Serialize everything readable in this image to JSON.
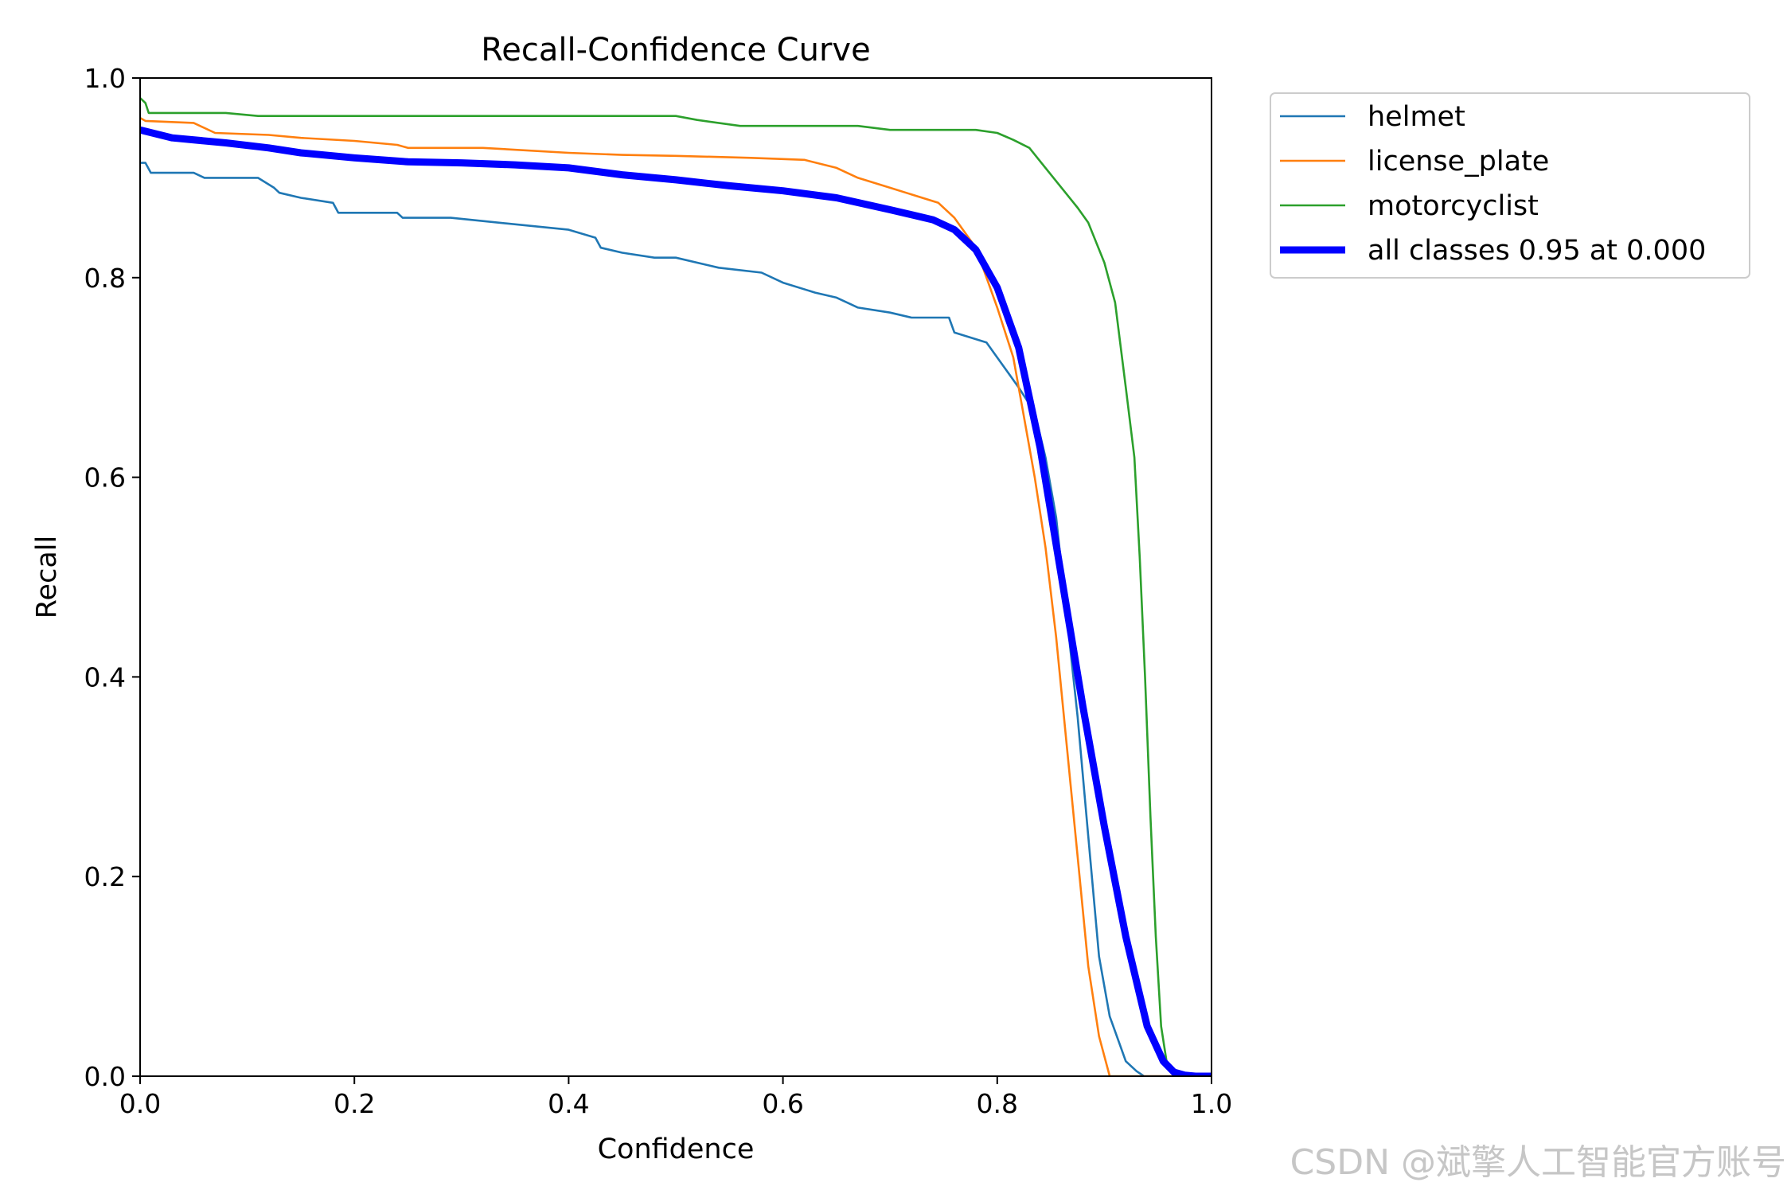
{
  "chart_data": {
    "type": "line",
    "title": "Recall-Confidence Curve",
    "xlabel": "Confidence",
    "ylabel": "Recall",
    "xlim": [
      0,
      1
    ],
    "ylim": [
      0,
      1
    ],
    "xticks": [
      "0.0",
      "0.2",
      "0.4",
      "0.6",
      "0.8",
      "1.0"
    ],
    "yticks": [
      "0.0",
      "0.2",
      "0.4",
      "0.6",
      "0.8",
      "1.0"
    ],
    "grid": false,
    "legend_position": "outside-top-right",
    "series": [
      {
        "name": "helmet",
        "color": "#1f77b4",
        "x": [
          0.0,
          0.005,
          0.01,
          0.05,
          0.06,
          0.11,
          0.125,
          0.13,
          0.15,
          0.18,
          0.185,
          0.24,
          0.245,
          0.29,
          0.4,
          0.425,
          0.43,
          0.45,
          0.48,
          0.5,
          0.54,
          0.58,
          0.6,
          0.63,
          0.65,
          0.67,
          0.7,
          0.72,
          0.755,
          0.76,
          0.79,
          0.8,
          0.82,
          0.835,
          0.845,
          0.855,
          0.865,
          0.875,
          0.885,
          0.895,
          0.905,
          0.915,
          0.92,
          0.93,
          0.937,
          1.0
        ],
        "y": [
          0.915,
          0.915,
          0.905,
          0.905,
          0.9,
          0.9,
          0.89,
          0.885,
          0.88,
          0.875,
          0.865,
          0.865,
          0.86,
          0.86,
          0.848,
          0.84,
          0.83,
          0.825,
          0.82,
          0.82,
          0.81,
          0.805,
          0.795,
          0.785,
          0.78,
          0.77,
          0.765,
          0.76,
          0.76,
          0.745,
          0.735,
          0.72,
          0.69,
          0.665,
          0.62,
          0.56,
          0.46,
          0.36,
          0.24,
          0.12,
          0.06,
          0.03,
          0.015,
          0.005,
          0.0,
          0.0
        ]
      },
      {
        "name": "license_plate",
        "color": "#ff7f0e",
        "x": [
          0.0,
          0.005,
          0.05,
          0.07,
          0.12,
          0.15,
          0.2,
          0.24,
          0.25,
          0.32,
          0.4,
          0.45,
          0.5,
          0.57,
          0.62,
          0.65,
          0.67,
          0.7,
          0.745,
          0.76,
          0.78,
          0.8,
          0.815,
          0.825,
          0.835,
          0.845,
          0.855,
          0.865,
          0.875,
          0.885,
          0.895,
          0.905,
          1.0
        ],
        "y": [
          0.96,
          0.957,
          0.955,
          0.945,
          0.943,
          0.94,
          0.937,
          0.933,
          0.93,
          0.93,
          0.925,
          0.923,
          0.922,
          0.92,
          0.918,
          0.91,
          0.9,
          0.89,
          0.875,
          0.86,
          0.83,
          0.77,
          0.72,
          0.66,
          0.6,
          0.53,
          0.44,
          0.33,
          0.22,
          0.11,
          0.04,
          0.0,
          0.0
        ]
      },
      {
        "name": "motorcyclist",
        "color": "#2ca02c",
        "x": [
          0.0,
          0.005,
          0.008,
          0.08,
          0.11,
          0.2,
          0.5,
          0.52,
          0.56,
          0.67,
          0.7,
          0.78,
          0.8,
          0.815,
          0.83,
          0.845,
          0.86,
          0.875,
          0.885,
          0.9,
          0.91,
          0.92,
          0.928,
          0.933,
          0.938,
          0.943,
          0.948,
          0.953,
          0.958,
          0.963,
          0.97,
          1.0
        ],
        "y": [
          0.98,
          0.975,
          0.965,
          0.965,
          0.962,
          0.962,
          0.962,
          0.958,
          0.952,
          0.952,
          0.948,
          0.948,
          0.945,
          0.938,
          0.93,
          0.91,
          0.89,
          0.87,
          0.855,
          0.815,
          0.775,
          0.69,
          0.62,
          0.52,
          0.4,
          0.26,
          0.14,
          0.05,
          0.015,
          0.003,
          0.0,
          0.0
        ]
      },
      {
        "name": "all classes 0.95 at 0.000",
        "color": "#0000ff",
        "thick": true,
        "x": [
          0.0,
          0.03,
          0.08,
          0.12,
          0.15,
          0.2,
          0.25,
          0.3,
          0.35,
          0.4,
          0.45,
          0.5,
          0.55,
          0.6,
          0.65,
          0.7,
          0.74,
          0.76,
          0.78,
          0.8,
          0.82,
          0.84,
          0.86,
          0.88,
          0.9,
          0.92,
          0.94,
          0.955,
          0.965,
          0.975,
          0.985,
          1.0
        ],
        "y": [
          0.948,
          0.94,
          0.935,
          0.93,
          0.925,
          0.92,
          0.916,
          0.915,
          0.913,
          0.91,
          0.903,
          0.898,
          0.892,
          0.887,
          0.88,
          0.868,
          0.858,
          0.848,
          0.828,
          0.79,
          0.73,
          0.63,
          0.5,
          0.37,
          0.25,
          0.14,
          0.05,
          0.015,
          0.004,
          0.001,
          0.0,
          0.0
        ]
      }
    ]
  },
  "watermark": "CSDN @斌擎人工智能官方账号"
}
